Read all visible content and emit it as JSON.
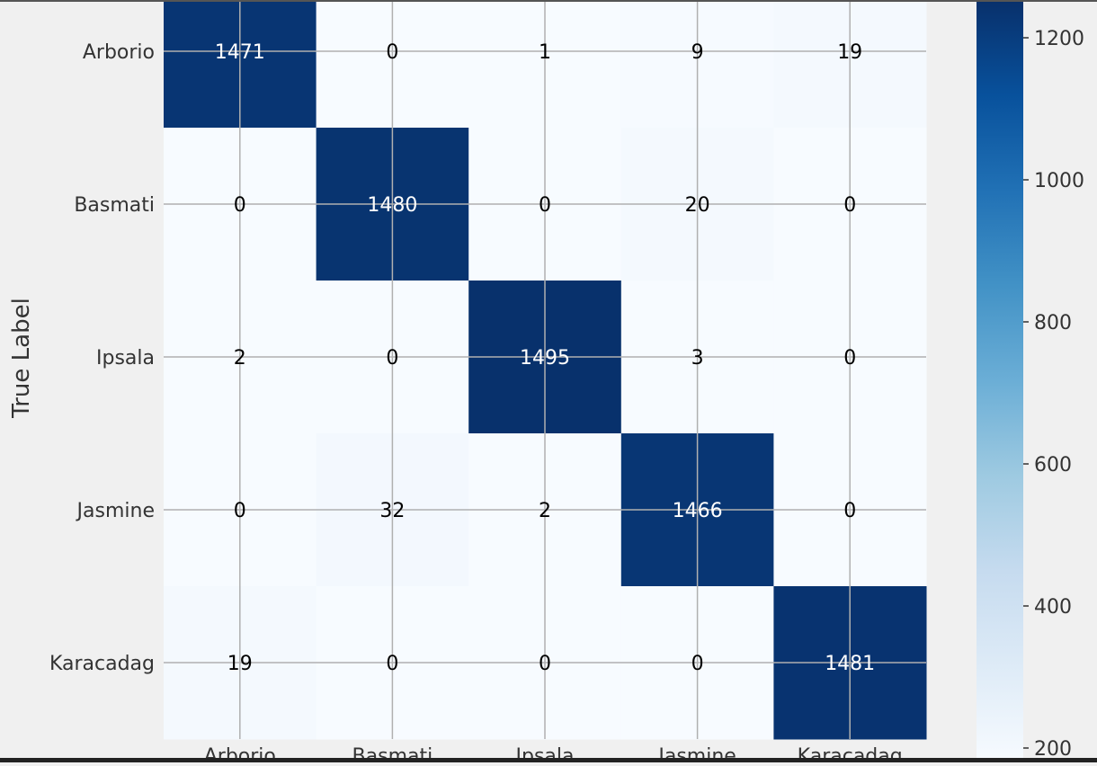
{
  "chart_data": {
    "type": "heatmap",
    "title": "",
    "xlabel": "",
    "ylabel": "True Label",
    "x_categories": [
      "Arborio",
      "Basmati",
      "Ipsala",
      "Jasmine",
      "Karacadag"
    ],
    "y_categories": [
      "Arborio",
      "Basmati",
      "Ipsala",
      "Jasmine",
      "Karacadag"
    ],
    "matrix": [
      [
        1471,
        0,
        1,
        9,
        19
      ],
      [
        0,
        1480,
        0,
        20,
        0
      ],
      [
        2,
        0,
        1495,
        3,
        0
      ],
      [
        0,
        32,
        2,
        1466,
        0
      ],
      [
        19,
        0,
        0,
        0,
        1481
      ]
    ],
    "colormap": "Blues",
    "color_low": "#f7fbff",
    "color_high": "#08306b",
    "colorbar": {
      "ticks": [
        200,
        400,
        600,
        800,
        1000,
        1200
      ],
      "range": [
        0,
        1500
      ]
    },
    "grid": true
  }
}
